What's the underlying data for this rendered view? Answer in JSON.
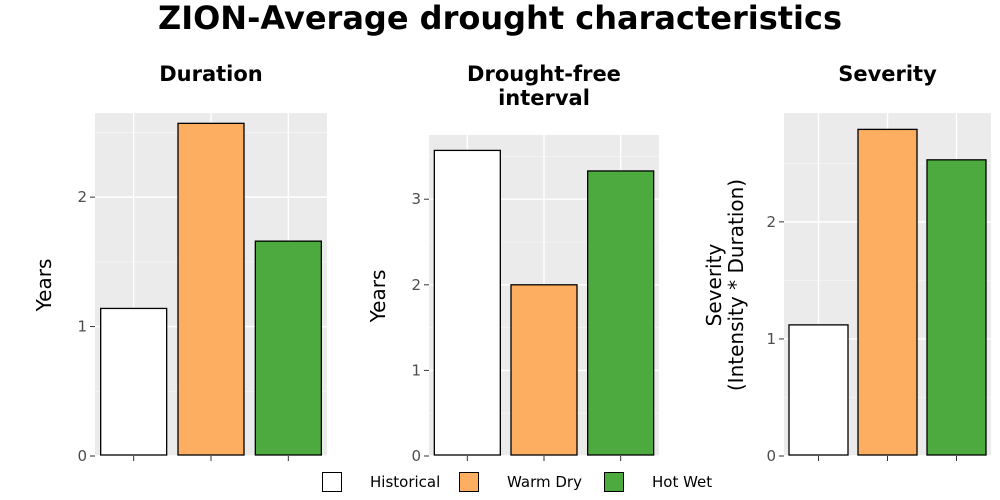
{
  "title": "ZION-Average drought characteristics",
  "legend": {
    "items": [
      {
        "label": "Historical",
        "color": "#ffffff"
      },
      {
        "label": "Warm Dry",
        "color": "#fdae61"
      },
      {
        "label": "Hot Wet",
        "color": "#4daa3f"
      }
    ]
  },
  "chart_data": [
    {
      "type": "bar",
      "title": "Duration",
      "ylabel": "Years",
      "categories": [
        "Historical",
        "Warm Dry",
        "Hot Wet"
      ],
      "values": [
        1.14,
        2.57,
        1.66
      ],
      "colors": [
        "#ffffff",
        "#fdae61",
        "#4daa3f"
      ],
      "ylim": [
        0,
        2.65
      ],
      "yticks": [
        0,
        1,
        2
      ],
      "grid": true
    },
    {
      "type": "bar",
      "title": "Drought-free interval",
      "ylabel": "Years",
      "categories": [
        "Historical",
        "Warm Dry",
        "Hot Wet"
      ],
      "values": [
        3.57,
        2.0,
        3.33
      ],
      "colors": [
        "#ffffff",
        "#fdae61",
        "#4daa3f"
      ],
      "ylim": [
        0,
        3.75
      ],
      "yticks": [
        0,
        1,
        2,
        3
      ],
      "grid": true
    },
    {
      "type": "bar",
      "title": "Severity",
      "ylabel": "Severity\n(Intensity * Duration)",
      "categories": [
        "Historical",
        "Warm Dry",
        "Hot Wet"
      ],
      "values": [
        1.12,
        2.79,
        2.53
      ],
      "colors": [
        "#ffffff",
        "#fdae61",
        "#4daa3f"
      ],
      "ylim": [
        0,
        2.93
      ],
      "yticks": [
        0,
        1,
        2
      ],
      "grid": true
    }
  ]
}
